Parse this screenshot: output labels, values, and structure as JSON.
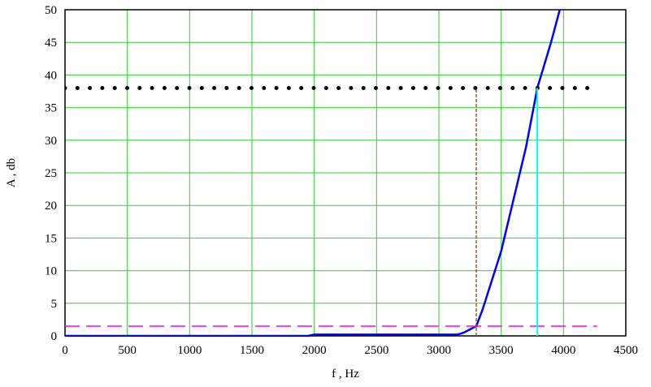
{
  "chart_data": {
    "type": "line",
    "x_label": "f , Hz",
    "y_label": "A , db",
    "xlim": [
      0,
      4500
    ],
    "ylim": [
      0,
      50
    ],
    "xticks": [
      0,
      500,
      1000,
      1500,
      2000,
      2500,
      3000,
      3500,
      4000,
      4500
    ],
    "yticks": [
      0,
      5,
      10,
      15,
      20,
      25,
      30,
      35,
      40,
      45,
      50
    ],
    "grid": true,
    "grid_color": "#33cc33",
    "series": [
      {
        "color": "#0000ff",
        "style": "solid",
        "x": [
          0,
          500,
          1000,
          1500,
          1950,
          2000,
          2500,
          3000,
          3150,
          3200,
          3250,
          3300,
          3350,
          3400,
          3500,
          3600,
          3700,
          3790,
          3900,
          3970
        ],
        "values": [
          0,
          0,
          0,
          0,
          0,
          0.2,
          0.2,
          0.2,
          0.2,
          0.5,
          1,
          1.5,
          4,
          7,
          13,
          21,
          29,
          38,
          45,
          50
        ]
      },
      {
        "color": "#000000",
        "style": "dotted",
        "x": [
          0,
          4270
        ],
        "values": [
          38,
          38
        ]
      },
      {
        "color": "#ff00ff",
        "style": "dashed",
        "x": [
          0,
          4270
        ],
        "values": [
          1.5,
          1.5
        ]
      },
      {
        "color": "#8b4513",
        "style": "dashed-thin",
        "x": [
          3300,
          3300
        ],
        "values": [
          0,
          38
        ]
      },
      {
        "color": "#00ffff",
        "style": "solid-thin",
        "x": [
          3790,
          3790
        ],
        "values": [
          0,
          38
        ]
      }
    ]
  }
}
